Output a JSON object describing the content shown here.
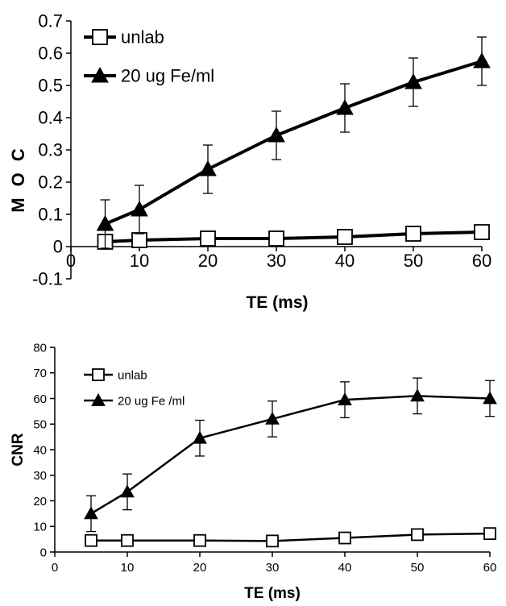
{
  "chart_data": [
    {
      "type": "line",
      "title": "",
      "xlabel": "TE (ms)",
      "ylabel": "M O C",
      "x": [
        5,
        10,
        20,
        30,
        40,
        50,
        60
      ],
      "xlim": [
        0,
        60
      ],
      "ylim": [
        -0.1,
        0.7
      ],
      "xticks": [
        "0",
        "10",
        "20",
        "30",
        "40",
        "50",
        "60"
      ],
      "yticks": [
        "-0.1",
        "0",
        "0.1",
        "0.2",
        "0.3",
        "0.4",
        "0.5",
        "0.6",
        "0.7"
      ],
      "grid": false,
      "legend_position": "top-left",
      "series": [
        {
          "name": "unlab",
          "marker": "open-square",
          "values": [
            0.015,
            0.02,
            0.025,
            0.025,
            0.03,
            0.04,
            0.045
          ],
          "error": [
            0,
            0,
            0,
            0,
            0,
            0,
            0
          ]
        },
        {
          "name": "20 ug Fe/ml",
          "marker": "filled-triangle",
          "values": [
            0.07,
            0.115,
            0.24,
            0.345,
            0.43,
            0.51,
            0.575
          ],
          "error": [
            0.075,
            0.075,
            0.075,
            0.075,
            0.075,
            0.075,
            0.075
          ]
        }
      ]
    },
    {
      "type": "line",
      "title": "",
      "xlabel": "TE (ms)",
      "ylabel": "CNR",
      "x": [
        5,
        10,
        20,
        30,
        40,
        50,
        60
      ],
      "xlim": [
        0,
        60
      ],
      "ylim": [
        0,
        80
      ],
      "xticks": [
        "0",
        "10",
        "20",
        "30",
        "40",
        "50",
        "60"
      ],
      "yticks": [
        "0",
        "10",
        "20",
        "30",
        "40",
        "50",
        "60",
        "70",
        "80"
      ],
      "grid": false,
      "legend_position": "top-left",
      "series": [
        {
          "name": "unlab",
          "marker": "open-square",
          "values": [
            4.5,
            4.5,
            4.5,
            4.3,
            5.5,
            6.8,
            7.2
          ],
          "error": [
            0,
            0,
            0,
            0,
            0,
            0,
            0
          ]
        },
        {
          "name": "20 ug Fe /ml",
          "marker": "filled-triangle",
          "values": [
            15,
            23.5,
            44.5,
            52,
            59.5,
            61,
            60
          ],
          "error": [
            7,
            7,
            7,
            7,
            7,
            7,
            7
          ]
        }
      ]
    }
  ]
}
